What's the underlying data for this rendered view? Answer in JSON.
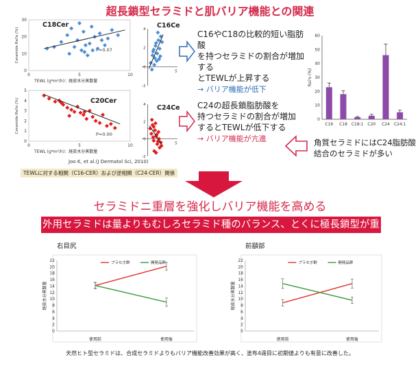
{
  "title": "超長鎖型セラミドと肌バリア機能との関連",
  "scatter_axes": {
    "ylabel": "Ceramide Ra?o (%)",
    "xlabel": "TEWL (g*m²/h)：経皮水分蒸散量"
  },
  "panel_top": {
    "text_lines": [
      "C16やC18の比較的短い脂肪酸",
      "を持つセラミドの割合が増加する",
      "とTEWLが上昇する"
    ],
    "result": "→ バリア機能が低下"
  },
  "panel_bottom": {
    "text_lines": [
      "C24の超長鎖脂肪酸を",
      "持つセラミドの割合が増加",
      "するとTEWLが低下する"
    ],
    "result": "→ バリア機能が亢進"
  },
  "citation": "Joo K, et al.(J Dermatol Sci, 2010)",
  "caption": "TEWLに対する相関（C16-CER）および逆相関（C24-CER）関係",
  "stratum_text": [
    "角質セラミドにはC24脂肪酸",
    "結合のセラミドが多い"
  ],
  "banner1": "セラミドニ重層を強化しバリア機能を高める",
  "banner2": "外用セラミドは量よりもむしろセラミド種のバランス、とくに極長鎖型が重要",
  "bottom_note": "天然ヒト型セラミドは、合成セラミドよりもバリア機能改善効果が高く、塗布4週目に初期値よりも有意に改善した。",
  "chart_data": [
    {
      "type": "scatter",
      "title": "C18Cer",
      "stat": "P=0.07",
      "xlim": [
        0,
        10
      ],
      "ylim": [
        0,
        30
      ],
      "xticks": [
        "0",
        "5",
        "10"
      ],
      "yticks": [
        "0",
        "10",
        "20",
        "30"
      ],
      "x": [
        1.8,
        3.2,
        3.8,
        4.2,
        4.5,
        4.8,
        5.0,
        5.2,
        5.4,
        5.5,
        5.6,
        5.8,
        6.0,
        6.2,
        6.3,
        6.5,
        6.8,
        7.0,
        7.2,
        7.5,
        7.8,
        8.2,
        8.8,
        2.5,
        4.0
      ],
      "y": [
        13,
        17,
        21,
        25,
        14,
        18,
        28,
        12,
        23,
        11,
        15,
        9,
        16,
        26,
        12,
        20,
        13,
        22,
        18,
        15,
        19,
        24,
        21,
        14,
        10
      ],
      "trend": [
        [
          1.5,
          13
        ],
        [
          9.5,
          24
        ]
      ]
    },
    {
      "type": "scatter",
      "title": "C16Cer",
      "xlim": [
        -1,
        5
      ],
      "ylim": [
        -2,
        4
      ],
      "xticks": [
        "0",
        "5"
      ],
      "yticks": [
        "-2",
        "0",
        "2",
        "4"
      ],
      "x": [
        0.5,
        0.8,
        1.0,
        1.2,
        1.4,
        1.6,
        1.8,
        2.0,
        2.2,
        1.1,
        1.5,
        0.9,
        1.7,
        1.3,
        2.4,
        1.9,
        0.7,
        2.1
      ],
      "y": [
        0.4,
        1.2,
        1.8,
        0.9,
        2.5,
        1.4,
        2.8,
        1.9,
        3.2,
        0.2,
        0.6,
        1.6,
        3.6,
        2.2,
        2.6,
        0.8,
        -0.3,
        1.1
      ],
      "trend": [
        [
          0.2,
          -0.2
        ],
        [
          2.6,
          3.4
        ]
      ]
    },
    {
      "type": "scatter",
      "title": "C20Cer",
      "stat": "P=0.00",
      "xlim": [
        0,
        10
      ],
      "ylim": [
        0,
        5
      ],
      "xticks": [
        "0",
        "5",
        "10"
      ],
      "yticks": [
        "0",
        "1",
        "2",
        "3",
        "4",
        "5"
      ],
      "x": [
        1.5,
        2.0,
        2.6,
        3.0,
        3.4,
        3.8,
        4.2,
        4.5,
        4.8,
        5.1,
        5.4,
        5.7,
        6.0,
        6.3,
        6.6,
        7.0,
        7.3,
        7.7,
        8.1,
        8.5,
        3.2,
        4.0,
        5.5
      ],
      "y": [
        4.5,
        4.2,
        3.9,
        4.0,
        3.6,
        3.3,
        3.1,
        2.9,
        3.4,
        2.8,
        2.6,
        2.2,
        3.0,
        2.4,
        2.0,
        1.8,
        2.6,
        1.5,
        1.7,
        1.3,
        3.8,
        2.5,
        2.9
      ],
      "trend": [
        [
          1.5,
          4.6
        ],
        [
          9.0,
          1.7
        ]
      ]
    },
    {
      "type": "scatter",
      "title": "C24Cer",
      "xlim": [
        -1,
        5
      ],
      "ylim": [
        -2,
        4
      ],
      "xticks": [
        "0",
        "5"
      ],
      "yticks": [
        "-2",
        "0",
        "2",
        "4"
      ],
      "x": [
        0.4,
        0.6,
        0.8,
        1.0,
        1.2,
        1.4,
        1.6,
        1.8,
        2.0,
        2.2,
        0.9,
        1.3,
        1.7,
        1.1,
        1.5,
        0.7,
        1.9,
        2.3,
        1.0,
        1.4
      ],
      "y": [
        1.2,
        0.6,
        1.6,
        -0.2,
        1.0,
        0.3,
        -0.6,
        0.8,
        -1.0,
        -0.4,
        0.2,
        1.8,
        -0.3,
        -1.4,
        0.5,
        2.2,
        0.0,
        -0.8,
        1.4,
        -1.6
      ],
      "trend": [
        [
          0.3,
          1.5
        ],
        [
          2.4,
          -0.7
        ]
      ]
    },
    {
      "type": "bar",
      "ylabel": "Ra?o (%)",
      "categories": [
        "C16",
        "C18",
        "C18:1",
        "C20",
        "C24",
        "C24:1"
      ],
      "values": [
        23,
        18,
        1.5,
        2.5,
        46,
        5
      ],
      "errors": [
        3,
        2.5,
        0.5,
        1,
        8,
        1.5
      ],
      "ylim": [
        0,
        60
      ],
      "yticks": [
        "0",
        "10",
        "20",
        "30",
        "40",
        "50",
        "60"
      ],
      "color": "#8e4aa8"
    },
    {
      "type": "line",
      "title": "右目尻",
      "ylabel": "経皮水分蒸散量",
      "categories": [
        "使用前",
        "使用後"
      ],
      "ylim": [
        0,
        22
      ],
      "yticks": [
        "0",
        "2",
        "4",
        "6",
        "8",
        "10",
        "12",
        "14",
        "16",
        "18",
        "20",
        "22"
      ],
      "series": [
        {
          "name": "プラセボ群",
          "values": [
            14.2,
            20.2
          ],
          "errors": [
            1.0,
            1.2
          ],
          "color": "#e0322b"
        },
        {
          "name": "開発品群",
          "values": [
            14.2,
            9.0
          ],
          "errors": [
            0.9,
            1.3
          ],
          "color": "#3a9a3a"
        }
      ]
    },
    {
      "type": "line",
      "title": "前額部",
      "ylabel": "経皮水分蒸散量",
      "categories": [
        "使用前",
        "使用後"
      ],
      "ylim": [
        0,
        22
      ],
      "yticks": [
        "0",
        "2",
        "4",
        "6",
        "8",
        "10",
        "12",
        "14",
        "16",
        "18",
        "20",
        "22"
      ],
      "series": [
        {
          "name": "プラセボ群",
          "values": [
            8.8,
            14.8
          ],
          "errors": [
            1.0,
            1.4
          ],
          "color": "#e0322b"
        },
        {
          "name": "開発品群",
          "values": [
            14.8,
            9.6
          ],
          "errors": [
            1.5,
            1.0
          ],
          "color": "#3a9a3a"
        }
      ]
    }
  ]
}
